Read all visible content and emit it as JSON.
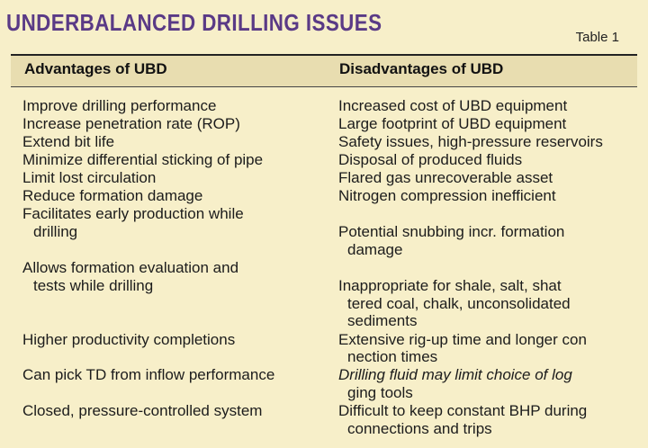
{
  "title": "Underbalanced drilling issues",
  "table_label": "Table 1",
  "columns": {
    "advantages": "Advantages of UBD",
    "disadvantages": "Disadvantages of UBD"
  },
  "advantages": [
    "Improve drilling performance",
    "Increase penetration rate (ROP)",
    "Extend bit life",
    "Minimize differential sticking of pipe",
    "Limit lost circulation",
    "Reduce formation damage",
    "Facilitates early production while",
    "drilling",
    "Allows formation evaluation and",
    "tests while drilling",
    "Higher productivity completions",
    "Can pick TD from inflow performance",
    "Closed, pressure-controlled system"
  ],
  "disadvantages": [
    "Increased cost of UBD equipment",
    "Large footprint of UBD equipment",
    "Safety issues, high-pressure reservoirs",
    "Disposal of produced fluids",
    "Flared gas unrecoverable asset",
    "Nitrogen compression inefficient",
    "Potential snubbing incr. formation",
    "damage",
    "Inappropriate for shale, salt, shat",
    "tered coal, chalk, unconsolidated",
    "sediments",
    "Extensive rig-up time and longer con",
    "nection times",
    "Drilling fluid may limit choice of log",
    "ging tools",
    "Difficult to keep constant BHP during",
    "connections and trips"
  ],
  "colors": {
    "background": "#f7efc9",
    "title": "#5a3a86",
    "header_band": "#e8ddb0"
  }
}
